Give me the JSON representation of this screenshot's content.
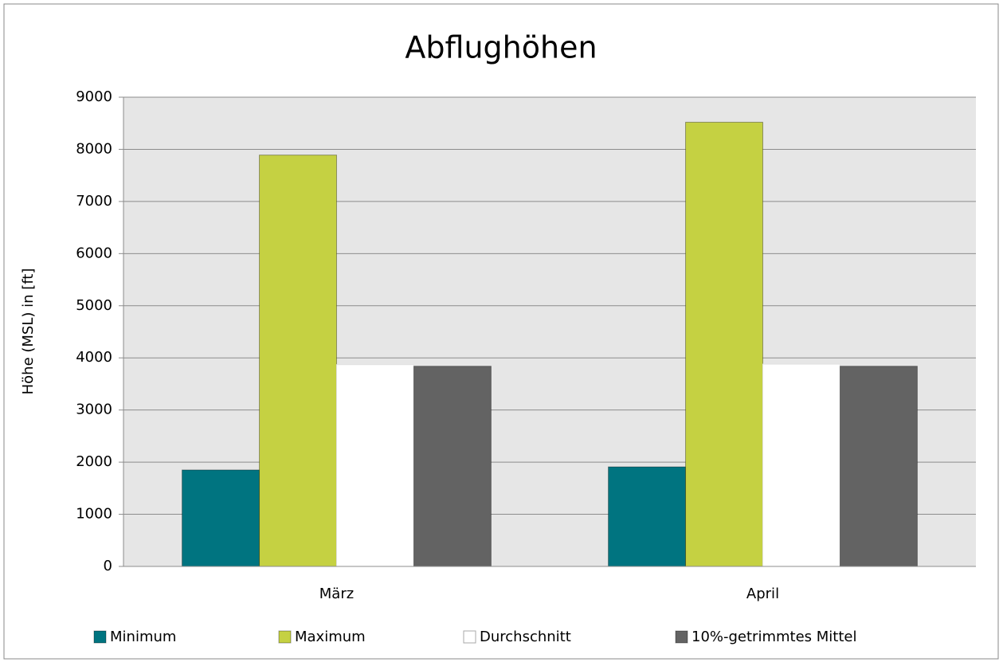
{
  "chart_data": {
    "type": "bar",
    "title": "Abflughöhen",
    "y_label": "Höhe (MSL) in [ft]",
    "categories": [
      "März",
      "April"
    ],
    "series": [
      {
        "name": "Minimum",
        "color": "#007480",
        "values": [
          1850,
          1910
        ]
      },
      {
        "name": "Maximum",
        "color": "#c5d142",
        "values": [
          7890,
          8520
        ]
      },
      {
        "name": "Durchschnitt",
        "color": "#ffffff",
        "values": [
          3870,
          3880
        ]
      },
      {
        "name": "10%-getrimmtes Mittel",
        "color": "#636363",
        "values": [
          3840,
          3840
        ]
      }
    ],
    "ylim": [
      0,
      9000
    ],
    "yticks": [
      0,
      1000,
      2000,
      3000,
      4000,
      5000,
      6000,
      7000,
      8000,
      9000
    ],
    "grid": true,
    "legend": "bottom"
  }
}
